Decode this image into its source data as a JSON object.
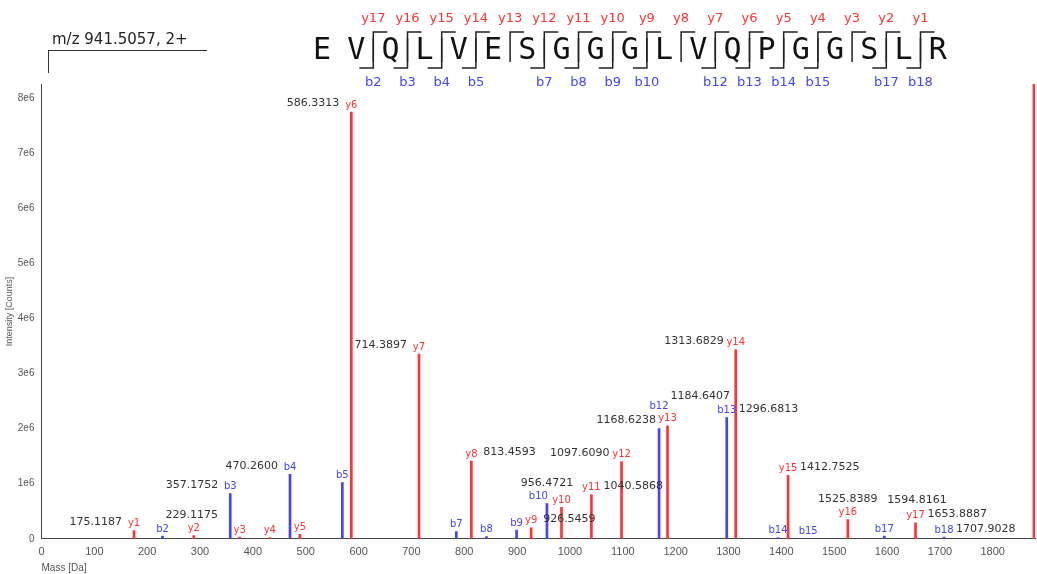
{
  "chart_data": {
    "type": "bar",
    "xlabel": "Mass [Da]",
    "ylabel": "Intensity [Counts]",
    "xlim": [
      0,
      1880
    ],
    "xticks": [
      0,
      100,
      200,
      300,
      400,
      500,
      600,
      700,
      800,
      900,
      1000,
      1100,
      1200,
      1300,
      1400,
      1500,
      1600,
      1700,
      1800
    ],
    "ylim": [
      0,
      8250000
    ],
    "yticks": [
      0,
      {
        "value": 1000000,
        "label": "1e6"
      },
      {
        "value": 2000000,
        "label": "2e6"
      },
      {
        "value": 3000000,
        "label": "3e6"
      },
      {
        "value": 4000000,
        "label": "4e6"
      },
      {
        "value": 5000000,
        "label": "5e6"
      },
      {
        "value": 6000000,
        "label": "6e6"
      },
      {
        "value": 7000000,
        "label": "7e6"
      },
      {
        "value": 8000000,
        "label": "8e6"
      }
    ],
    "grid": false,
    "legend": false,
    "series": [
      {
        "color": "#ff3333",
        "x": [
          175.1187,
          288.2,
          375,
          432,
          489,
          586.3313,
          714.3897,
          813.4593,
          926.5459,
          984,
          1040.5868,
          1097.609,
          1184.6407,
          1313.6829,
          1412.7525,
          1525.8389,
          1653.8887
        ],
        "values": [
          150000,
          60000,
          30000,
          20000,
          80000,
          7740000,
          3350000,
          1410000,
          200000,
          570000,
          800000,
          1400000,
          2050000,
          3430000,
          1150000,
          350000,
          290000
        ],
        "value_labels": [
          "y1",
          "y2",
          "y3",
          "y4",
          "y5",
          "y6",
          "y7",
          "y8",
          "y9",
          "y10",
          "y11",
          "y12",
          "y13",
          "y14",
          "y15",
          "y16",
          "y17"
        ]
      },
      {
        "color": "#4444ff",
        "x": [
          229.1175,
          357.1752,
          470.26,
          569.3,
          785,
          842,
          899,
          956.4721,
          1168.6238,
          1296.6813,
          1393.7,
          1450.8,
          1594.8161,
          1707.9028
        ],
        "values": [
          50000,
          820000,
          1170000,
          1020000,
          130000,
          40000,
          160000,
          640000,
          2000000,
          2200000,
          20000,
          10000,
          50000,
          30000
        ],
        "value_labels": [
          "b2",
          "b3",
          "b4",
          "b5",
          "b7",
          "b8",
          "b9",
          "b10",
          "b12",
          "b13",
          "b14",
          "b15",
          "b17",
          "b18"
        ]
      },
      {
        "color": "#ff3333",
        "x": [
          1878
        ],
        "values": [
          8250000
        ]
      }
    ],
    "annotations": [
      "m/z  941.5057, 2+",
      "EVQLVESGGGLVQPGGSLR",
      "y17 y16 y15 y14 y13 y12 y11 y10 y9 y8 y7 y6 y5 y4 y3 y2 y1",
      "b2 b3 b4 b5  b7 b8 b9 b10  b12 b13 b14 b15  b17 b18",
      {
        "text": "175.1187",
        "x": 175.1187,
        "y": 150000
      },
      {
        "text": "229.1175",
        "x": 229.1175,
        "y": 50000
      },
      {
        "text": "357.1752",
        "x": 357.1752,
        "y": 820000
      },
      {
        "text": "470.2600",
        "x": 470.26,
        "y": 1170000
      },
      {
        "text": "586.3313",
        "x": 586.3313,
        "y": 7740000
      },
      {
        "text": "714.3897",
        "x": 714.3897,
        "y": 3350000
      },
      {
        "text": "813.4593",
        "x": 813.4593,
        "y": 1410000
      },
      {
        "text": "926.5459",
        "x": 926.5459,
        "y": 200000
      },
      {
        "text": "956.4721",
        "x": 956.4721,
        "y": 640000
      },
      {
        "text": "1040.5868",
        "x": 1040.5868,
        "y": 800000
      },
      {
        "text": "1097.6090",
        "x": 1097.609,
        "y": 1400000
      },
      {
        "text": "1168.6238",
        "x": 1168.6238,
        "y": 2000000
      },
      {
        "text": "1184.6407",
        "x": 1184.6407,
        "y": 2050000
      },
      {
        "text": "1296.6813",
        "x": 1296.6813,
        "y": 2200000
      },
      {
        "text": "1313.6829",
        "x": 1313.6829,
        "y": 3430000
      },
      {
        "text": "1412.7525",
        "x": 1412.7525,
        "y": 1150000
      },
      {
        "text": "1525.8389",
        "x": 1525.8389,
        "y": 350000
      },
      {
        "text": "1594.8161",
        "x": 1594.8161,
        "y": 50000
      },
      {
        "text": "1653.8887",
        "x": 1653.8887,
        "y": 290000
      },
      {
        "text": "1707.9028",
        "x": 1707.9028,
        "y": 30000
      }
    ]
  }
}
